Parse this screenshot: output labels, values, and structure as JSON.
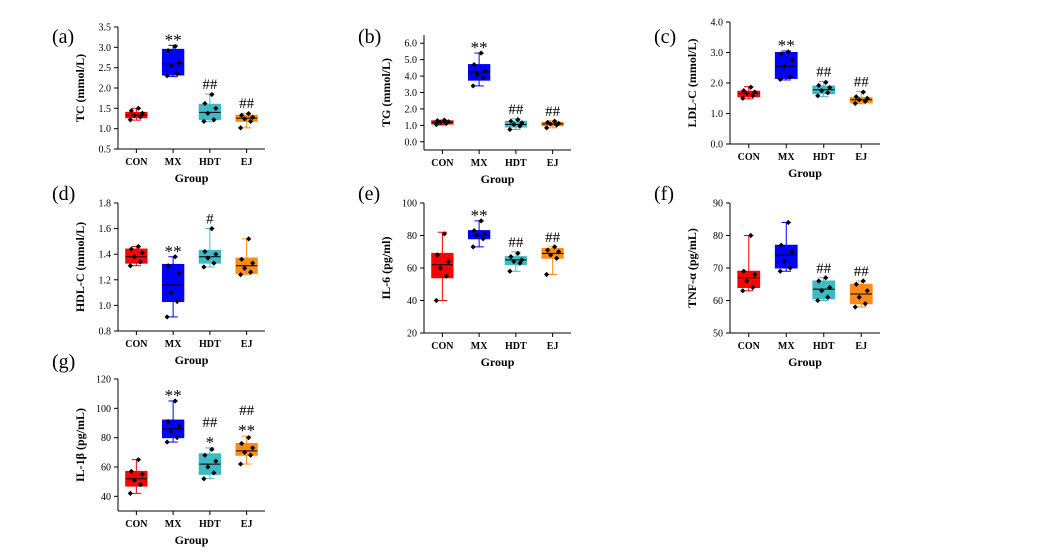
{
  "colors": {
    "CON": "#ff0000",
    "MX": "#0000ff",
    "HDT": "#3fbac4",
    "EJ": "#ff8c1a"
  },
  "chart_data": [
    {
      "type": "box",
      "panel_label": "(a)",
      "ylabel": "TC (mmol/L)",
      "xlabel": "Group",
      "categories": [
        "CON",
        "MX",
        "HDT",
        "EJ"
      ],
      "ylim": [
        0.5,
        3.5
      ],
      "yticks": [
        0.5,
        1.0,
        1.5,
        2.0,
        2.5,
        3.0,
        3.5
      ],
      "yticklabels": [
        "0.5",
        "1.0",
        "1.5",
        "2.0",
        "2.5",
        "3.0",
        "3.5"
      ],
      "boxes": [
        {
          "q1": 1.27,
          "median": 1.33,
          "q3": 1.4,
          "min": 1.21,
          "max": 1.5
        },
        {
          "q1": 2.32,
          "median": 2.6,
          "q3": 2.95,
          "min": 2.28,
          "max": 3.05
        },
        {
          "q1": 1.22,
          "median": 1.4,
          "q3": 1.6,
          "min": 1.17,
          "max": 1.85
        },
        {
          "q1": 1.18,
          "median": 1.26,
          "q3": 1.33,
          "min": 1.02,
          "max": 1.38
        }
      ],
      "points": [
        [
          1.22,
          1.29,
          1.33,
          1.38,
          1.44,
          1.5
        ],
        [
          2.3,
          2.35,
          2.55,
          2.62,
          2.92,
          3.02
        ],
        [
          1.18,
          1.22,
          1.38,
          1.5,
          1.62,
          1.84
        ],
        [
          1.02,
          1.18,
          1.24,
          1.28,
          1.33,
          1.37
        ]
      ],
      "annotations": [
        {
          "cat": "MX",
          "text": "**",
          "y": 3.05
        },
        {
          "cat": "HDT",
          "text": "##",
          "y": 1.85
        },
        {
          "cat": "EJ",
          "text": "##",
          "y": 1.38
        }
      ]
    },
    {
      "type": "box",
      "panel_label": "(b)",
      "ylabel": "TG (mmol/L)",
      "xlabel": "Group",
      "categories": [
        "CON",
        "MX",
        "HDT",
        "EJ"
      ],
      "ylim": [
        -0.5,
        6.5
      ],
      "yticks": [
        0,
        1,
        2,
        3,
        4,
        5,
        6
      ],
      "yticklabels": [
        "0.0",
        "1.0",
        "2.0",
        "3.0",
        "4.0",
        "5.0",
        "6.0"
      ],
      "boxes": [
        {
          "q1": 1.08,
          "median": 1.18,
          "q3": 1.28,
          "min": 1.02,
          "max": 1.32
        },
        {
          "q1": 3.75,
          "median": 4.25,
          "q3": 4.7,
          "min": 3.4,
          "max": 5.4
        },
        {
          "q1": 0.9,
          "median": 1.05,
          "q3": 1.25,
          "min": 0.75,
          "max": 1.4
        },
        {
          "q1": 0.98,
          "median": 1.08,
          "q3": 1.18,
          "min": 0.85,
          "max": 1.28
        }
      ],
      "points": [
        [
          1.05,
          1.12,
          1.18,
          1.22,
          1.28,
          1.32
        ],
        [
          3.4,
          3.9,
          4.1,
          4.3,
          4.7,
          5.4
        ],
        [
          0.75,
          0.95,
          1.05,
          1.15,
          1.25,
          1.35
        ],
        [
          0.85,
          1.02,
          1.08,
          1.12,
          1.18,
          1.25
        ]
      ],
      "annotations": [
        {
          "cat": "MX",
          "text": "**",
          "y": 5.4
        },
        {
          "cat": "HDT",
          "text": "##",
          "y": 1.4
        },
        {
          "cat": "EJ",
          "text": "##",
          "y": 1.28
        }
      ]
    },
    {
      "type": "box",
      "panel_label": "(c)",
      "ylabel": "LDL-C (mmol/L)",
      "xlabel": "Group",
      "categories": [
        "CON",
        "MX",
        "HDT",
        "EJ"
      ],
      "ylim": [
        0.0,
        4.0
      ],
      "yticks": [
        0,
        1,
        2,
        3,
        4
      ],
      "yticklabels": [
        "0.0",
        "1.0",
        "2.0",
        "3.0",
        "4.0"
      ],
      "boxes": [
        {
          "q1": 1.55,
          "median": 1.65,
          "q3": 1.73,
          "min": 1.48,
          "max": 1.88
        },
        {
          "q1": 2.15,
          "median": 2.55,
          "q3": 3.0,
          "min": 2.1,
          "max": 3.05
        },
        {
          "q1": 1.65,
          "median": 1.78,
          "q3": 1.9,
          "min": 1.55,
          "max": 2.05
        },
        {
          "q1": 1.35,
          "median": 1.45,
          "q3": 1.52,
          "min": 1.32,
          "max": 1.72
        }
      ],
      "points": [
        [
          1.5,
          1.58,
          1.65,
          1.7,
          1.75,
          1.86
        ],
        [
          2.12,
          2.2,
          2.55,
          2.75,
          2.95,
          3.02
        ],
        [
          1.58,
          1.68,
          1.75,
          1.85,
          1.92,
          2.02
        ],
        [
          1.33,
          1.4,
          1.45,
          1.5,
          1.55,
          1.7
        ]
      ],
      "annotations": [
        {
          "cat": "MX",
          "text": "**",
          "y": 3.05
        },
        {
          "cat": "HDT",
          "text": "##",
          "y": 2.05
        },
        {
          "cat": "EJ",
          "text": "##",
          "y": 1.72
        }
      ]
    },
    {
      "type": "box",
      "panel_label": "(d)",
      "ylabel": "HDL-C (mmol/L)",
      "xlabel": "Group",
      "categories": [
        "CON",
        "MX",
        "HDT",
        "EJ"
      ],
      "ylim": [
        0.8,
        1.8
      ],
      "yticks": [
        0.8,
        1.0,
        1.2,
        1.4,
        1.6,
        1.8
      ],
      "yticklabels": [
        "0.8",
        "1.0",
        "1.2",
        "1.4",
        "1.6",
        "1.8"
      ],
      "boxes": [
        {
          "q1": 1.33,
          "median": 1.38,
          "q3": 1.44,
          "min": 1.31,
          "max": 1.46
        },
        {
          "q1": 1.03,
          "median": 1.16,
          "q3": 1.32,
          "min": 0.91,
          "max": 1.38
        },
        {
          "q1": 1.33,
          "median": 1.38,
          "q3": 1.43,
          "min": 1.3,
          "max": 1.6
        },
        {
          "q1": 1.25,
          "median": 1.31,
          "q3": 1.37,
          "min": 1.24,
          "max": 1.52
        }
      ],
      "points": [
        [
          1.31,
          1.34,
          1.38,
          1.41,
          1.44,
          1.46
        ],
        [
          0.91,
          1.03,
          1.1,
          1.25,
          1.31,
          1.38
        ],
        [
          1.3,
          1.33,
          1.37,
          1.4,
          1.42,
          1.6
        ],
        [
          1.24,
          1.26,
          1.29,
          1.33,
          1.36,
          1.52
        ]
      ],
      "annotations": [
        {
          "cat": "MX",
          "text": "**",
          "y": 1.38
        },
        {
          "cat": "HDT",
          "text": "#",
          "y": 1.6
        }
      ]
    },
    {
      "type": "box",
      "panel_label": "(e)",
      "ylabel": "IL-6 (pg/ml)",
      "xlabel": "Group",
      "categories": [
        "CON",
        "MX",
        "HDT",
        "EJ"
      ],
      "ylim": [
        20,
        100
      ],
      "yticks": [
        20,
        40,
        60,
        80,
        100
      ],
      "yticklabels": [
        "20",
        "40",
        "60",
        "80",
        "100"
      ],
      "boxes": [
        {
          "q1": 54,
          "median": 62,
          "q3": 69,
          "min": 40,
          "max": 82
        },
        {
          "q1": 78,
          "median": 80,
          "q3": 83,
          "min": 73,
          "max": 89
        },
        {
          "q1": 62,
          "median": 65,
          "q3": 67,
          "min": 58,
          "max": 70
        },
        {
          "q1": 66,
          "median": 69,
          "q3": 72,
          "min": 56,
          "max": 73
        }
      ],
      "points": [
        [
          40,
          55,
          60,
          64,
          68,
          81
        ],
        [
          73,
          78,
          80,
          81,
          83,
          89
        ],
        [
          58,
          63,
          64,
          65,
          67,
          69
        ],
        [
          56,
          66,
          68,
          70,
          71,
          73
        ]
      ],
      "annotations": [
        {
          "cat": "MX",
          "text": "**",
          "y": 89
        },
        {
          "cat": "HDT",
          "text": "##",
          "y": 70
        },
        {
          "cat": "EJ",
          "text": "##",
          "y": 73
        }
      ]
    },
    {
      "type": "box",
      "panel_label": "(f)",
      "ylabel": "TNF-α (pg/mL)",
      "xlabel": "Group",
      "categories": [
        "CON",
        "MX",
        "HDT",
        "EJ"
      ],
      "ylim": [
        50,
        90
      ],
      "yticks": [
        50,
        60,
        70,
        80,
        90
      ],
      "yticklabels": [
        "50",
        "60",
        "70",
        "80",
        "90"
      ],
      "boxes": [
        {
          "q1": 64,
          "median": 67,
          "q3": 69,
          "min": 63,
          "max": 80
        },
        {
          "q1": 70,
          "median": 74,
          "q3": 77,
          "min": 69,
          "max": 84
        },
        {
          "q1": 60.5,
          "median": 63.5,
          "q3": 66,
          "min": 60,
          "max": 67
        },
        {
          "q1": 59,
          "median": 62,
          "q3": 65,
          "min": 58,
          "max": 66
        }
      ],
      "points": [
        [
          63,
          64,
          66,
          68,
          69,
          80
        ],
        [
          69,
          70,
          72,
          75,
          77,
          84
        ],
        [
          60,
          61,
          63,
          64,
          66,
          67
        ],
        [
          58,
          59,
          61,
          63,
          65,
          66
        ]
      ],
      "annotations": [
        {
          "cat": "HDT",
          "text": "##",
          "y": 67
        },
        {
          "cat": "EJ",
          "text": "##",
          "y": 66
        }
      ]
    },
    {
      "type": "box",
      "panel_label": "(g)",
      "ylabel": "IL-1β (pg/mL)",
      "xlabel": "Group",
      "categories": [
        "CON",
        "MX",
        "HDT",
        "EJ"
      ],
      "ylim": [
        30,
        120
      ],
      "yticks": [
        40,
        60,
        80,
        100,
        120
      ],
      "yticklabels": [
        "40",
        "60",
        "80",
        "100",
        "120"
      ],
      "boxes": [
        {
          "q1": 47,
          "median": 52,
          "q3": 57,
          "min": 42,
          "max": 65
        },
        {
          "q1": 80,
          "median": 86,
          "q3": 92,
          "min": 77,
          "max": 105
        },
        {
          "q1": 55,
          "median": 62,
          "q3": 69,
          "min": 52,
          "max": 73
        },
        {
          "q1": 68,
          "median": 71,
          "q3": 76,
          "min": 62,
          "max": 81
        }
      ],
      "points": [
        [
          42,
          48,
          51,
          55,
          57,
          65
        ],
        [
          77,
          80,
          84,
          88,
          91,
          105
        ],
        [
          52,
          56,
          60,
          64,
          68,
          72
        ],
        [
          62,
          68,
          70,
          73,
          76,
          80
        ]
      ],
      "annotations": [
        {
          "cat": "MX",
          "text": "**",
          "y": 105
        },
        {
          "cat": "HDT",
          "text": "*",
          "y": 73
        },
        {
          "cat": "HDT",
          "text": "##",
          "y": 73,
          "stack": 2
        },
        {
          "cat": "EJ",
          "text": "**",
          "y": 81
        },
        {
          "cat": "EJ",
          "text": "##",
          "y": 81,
          "stack": 2
        }
      ]
    }
  ]
}
